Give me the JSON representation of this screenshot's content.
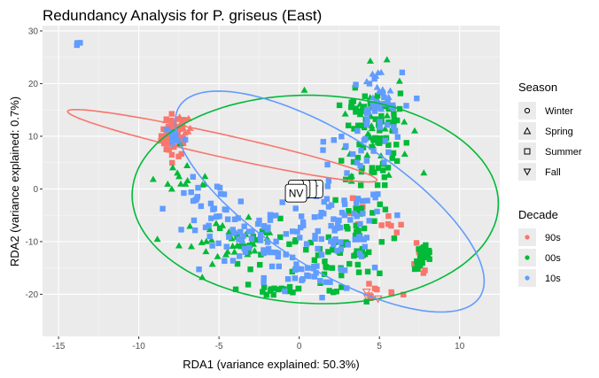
{
  "chart_data": {
    "type": "scatter",
    "title": "Redundancy Analysis for P. griseus (East)",
    "xlabel": "RDA1 (variance explained: 50.3%)",
    "ylabel": "RDA2 (variance explained: 0.7%)",
    "xlim": [
      -16,
      12.5
    ],
    "ylim": [
      -28,
      31
    ],
    "xticks": [
      -15,
      -10,
      -5,
      0,
      5,
      10
    ],
    "yticks": [
      -20,
      -10,
      0,
      10,
      20,
      30
    ],
    "grid": true,
    "legend_position": "right",
    "legends": [
      {
        "title": "Season",
        "entries": [
          {
            "label": "Winter",
            "shape": "circle"
          },
          {
            "label": "Spring",
            "shape": "triangle-up"
          },
          {
            "label": "Summer",
            "shape": "square"
          },
          {
            "label": "Fall",
            "shape": "triangle-down"
          }
        ]
      },
      {
        "title": "Decade",
        "entries": [
          {
            "label": "90s",
            "color": "#F8766D"
          },
          {
            "label": "00s",
            "color": "#00BA38"
          },
          {
            "label": "10s",
            "color": "#619CFF"
          }
        ]
      }
    ],
    "series": [
      {
        "name": "90s",
        "color": "#F8766D",
        "clusters": [
          {
            "shape": "square",
            "cx": -7.8,
            "cy": 10.2,
            "sx": 0.4,
            "sy": 2,
            "n": 50
          },
          {
            "shape": "triangle-up",
            "cx": -7.5,
            "cy": 11,
            "sx": 0.4,
            "sy": 1.6,
            "n": 20
          },
          {
            "shape": "square",
            "cx": 7.5,
            "cy": -14,
            "sx": 0.3,
            "sy": 1.5,
            "n": 8
          },
          {
            "shape": "square",
            "cx": 4.8,
            "cy": -19.5,
            "sx": 0.8,
            "sy": 1.0,
            "n": 8
          },
          {
            "shape": "square",
            "cx": 5.6,
            "cy": -8.5,
            "sx": 0.5,
            "sy": 2,
            "n": 6
          },
          {
            "shape": "triangle-down",
            "cx": 4.5,
            "cy": -20.5,
            "sx": 0.4,
            "sy": 0.5,
            "n": 4
          },
          {
            "shape": "square",
            "cx": 3.8,
            "cy": -5,
            "sx": 0.4,
            "sy": 1.5,
            "n": 5
          },
          {
            "shape": "square",
            "cx": -13.6,
            "cy": 27.5,
            "sx": 0.15,
            "sy": 0.2,
            "n": 0
          }
        ]
      },
      {
        "name": "00s",
        "color": "#00BA38",
        "clusters": [
          {
            "shape": "square",
            "cx": 4.8,
            "cy": 10,
            "sx": 1.0,
            "sy": 5.5,
            "n": 60
          },
          {
            "shape": "triangle-up",
            "cx": 4.5,
            "cy": 13,
            "sx": 1.2,
            "sy": 5,
            "n": 40
          },
          {
            "shape": "square",
            "cx": 3.7,
            "cy": -8,
            "sx": 0.8,
            "sy": 5,
            "n": 40
          },
          {
            "shape": "triangle-up",
            "cx": -4.5,
            "cy": -10,
            "sx": 1.5,
            "sy": 2,
            "n": 30
          },
          {
            "shape": "square",
            "cx": -2.5,
            "cy": -10,
            "sx": 1.4,
            "sy": 2,
            "n": 20
          },
          {
            "shape": "square",
            "cx": 1.5,
            "cy": -15,
            "sx": 1.2,
            "sy": 2.5,
            "n": 25
          },
          {
            "shape": "square",
            "cx": 7.8,
            "cy": -13,
            "sx": 0.3,
            "sy": 1.2,
            "n": 25
          },
          {
            "shape": "square",
            "cx": -1.5,
            "cy": -19,
            "sx": 1.2,
            "sy": 1.0,
            "n": 18
          },
          {
            "shape": "triangle-up",
            "cx": -7.0,
            "cy": 2,
            "sx": 1.0,
            "sy": 2,
            "n": 14
          },
          {
            "shape": "square",
            "cx": 3.6,
            "cy": 15,
            "sx": 0.5,
            "sy": 2,
            "n": 10
          }
        ]
      },
      {
        "name": "10s",
        "color": "#619CFF",
        "clusters": [
          {
            "shape": "square",
            "cx": 2.5,
            "cy": -8,
            "sx": 1.5,
            "sy": 4.5,
            "n": 70
          },
          {
            "shape": "square",
            "cx": -2.0,
            "cy": -8.5,
            "sx": 1.6,
            "sy": 2.5,
            "n": 50
          },
          {
            "shape": "square",
            "cx": -5.5,
            "cy": -4,
            "sx": 1.3,
            "sy": 2.8,
            "n": 35
          },
          {
            "shape": "square",
            "cx": 4.8,
            "cy": 14,
            "sx": 0.8,
            "sy": 4,
            "n": 35
          },
          {
            "shape": "triangle-up",
            "cx": 4.8,
            "cy": 18,
            "sx": 0.6,
            "sy": 2.5,
            "n": 15
          },
          {
            "shape": "square",
            "cx": 0.5,
            "cy": -17,
            "sx": 1.3,
            "sy": 2,
            "n": 25
          },
          {
            "shape": "square",
            "cx": -7.8,
            "cy": 10,
            "sx": 0.4,
            "sy": 1.5,
            "n": 10
          },
          {
            "shape": "square",
            "cx": 3.0,
            "cy": 7,
            "sx": 1.5,
            "sy": 3,
            "n": 12
          },
          {
            "shape": "square",
            "cx": -13.6,
            "cy": 27.5,
            "sx": 0.15,
            "sy": 0.2,
            "n": 3
          }
        ]
      }
    ],
    "ellipses": [
      {
        "name": "90s",
        "color": "#F8766D",
        "cx": -4.8,
        "cy": 8.2,
        "a": 11.7,
        "b": 1.8,
        "angle_deg": -35
      },
      {
        "name": "00s",
        "color": "#00BA38",
        "cx": 1.0,
        "cy": -2,
        "a": 11.4,
        "b": 19.8,
        "angle_deg": 2
      },
      {
        "name": "10s",
        "color": "#619CFF",
        "cx": 1.9,
        "cy": -2.4,
        "a": 6.3,
        "b": 22.2,
        "angle_deg": 20
      }
    ],
    "biplot_labels": [
      {
        "text": "T",
        "x": 1.0,
        "y": 0
      },
      {
        "text": "",
        "x": 0.6,
        "y": 0
      },
      {
        "text": "",
        "x": 0.2,
        "y": 0
      },
      {
        "text": "",
        "x": -0.2,
        "y": 0
      },
      {
        "text": "NV",
        "x": -0.2,
        "y": -0.8
      }
    ]
  }
}
